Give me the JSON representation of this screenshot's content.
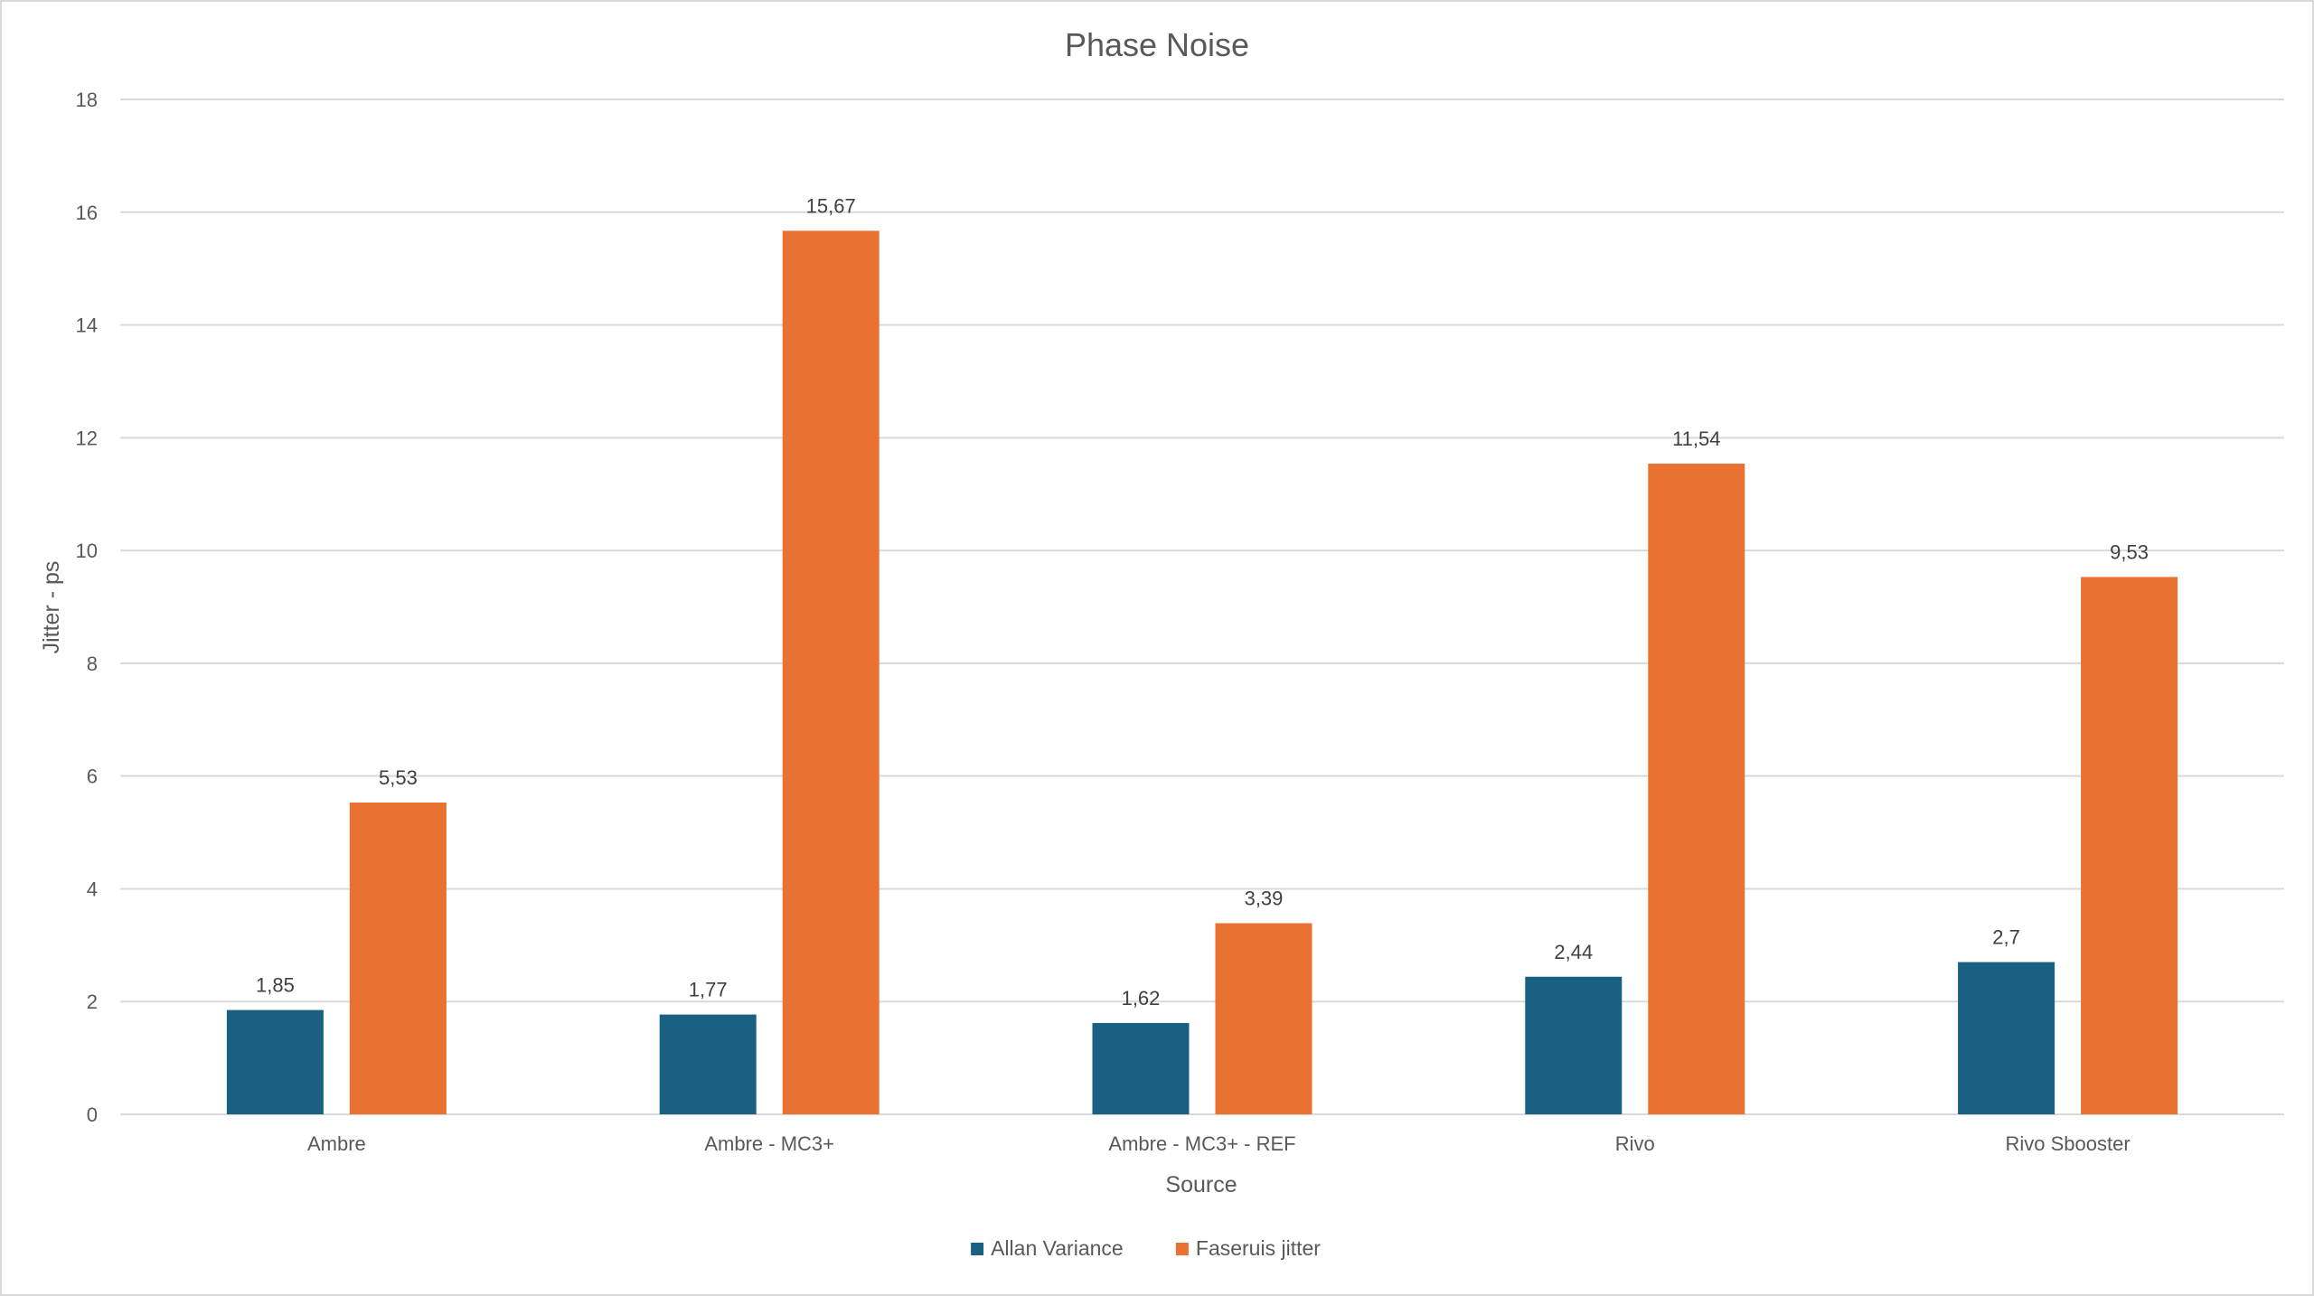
{
  "chart_data": {
    "type": "bar",
    "title": "Phase Noise",
    "xlabel": "Source",
    "ylabel": "Jitter - ps",
    "categories": [
      "Ambre",
      "Ambre - MC3+",
      "Ambre - MC3+ - REF",
      "Rivo",
      "Rivo Sbooster"
    ],
    "series": [
      {
        "name": "Allan Variance",
        "color": "#1a6082",
        "values": [
          1.85,
          1.77,
          1.62,
          2.44,
          2.7
        ],
        "labels": [
          "1,85",
          "1,77",
          "1,62",
          "2,44",
          "2,7"
        ]
      },
      {
        "name": "Faseruis jitter",
        "color": "#e97132",
        "values": [
          5.53,
          15.67,
          3.39,
          11.54,
          9.53
        ],
        "labels": [
          "5,53",
          "15,67",
          "3,39",
          "11,54",
          "9,53"
        ]
      }
    ],
    "ylim": [
      0,
      18
    ],
    "yticks": [
      0,
      2,
      4,
      6,
      8,
      10,
      12,
      14,
      16,
      18
    ],
    "grid": true,
    "legend_position": "bottom"
  }
}
